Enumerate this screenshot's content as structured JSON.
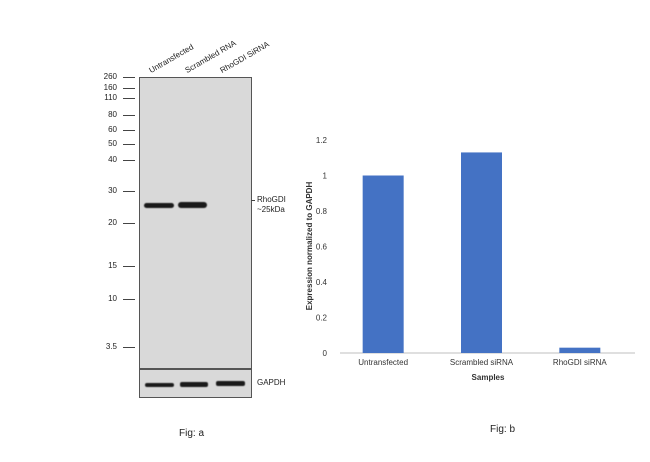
{
  "fig_a": {
    "caption": "Fig: a",
    "lanes": [
      "Untransfected",
      "Scrambled RNA",
      "RhoGDI SiRNA"
    ],
    "mw_markers": [
      "260",
      "160",
      "110",
      "80",
      "60",
      "50",
      "40",
      "30",
      "20",
      "15",
      "10",
      "3.5"
    ],
    "band_label_line1": "RhoGDI",
    "band_label_line2": "~25kDa",
    "loading_control_label": "GAPDH"
  },
  "fig_b": {
    "caption": "Fig: b"
  },
  "chart_data": {
    "type": "bar",
    "categories": [
      "Untransfected",
      "Scrambled siRNA",
      "RhoGDI siRNA"
    ],
    "values": [
      1.0,
      1.13,
      0.03
    ],
    "xlabel": "Samples",
    "ylabel": "Expression normalized to GAPDH",
    "ylim": [
      0,
      1.2
    ],
    "yticks": [
      "0",
      "0.2",
      "0.4",
      "0.6",
      "0.8",
      "1",
      "1.2"
    ],
    "grid": false,
    "bar_color": "#4472c4"
  }
}
